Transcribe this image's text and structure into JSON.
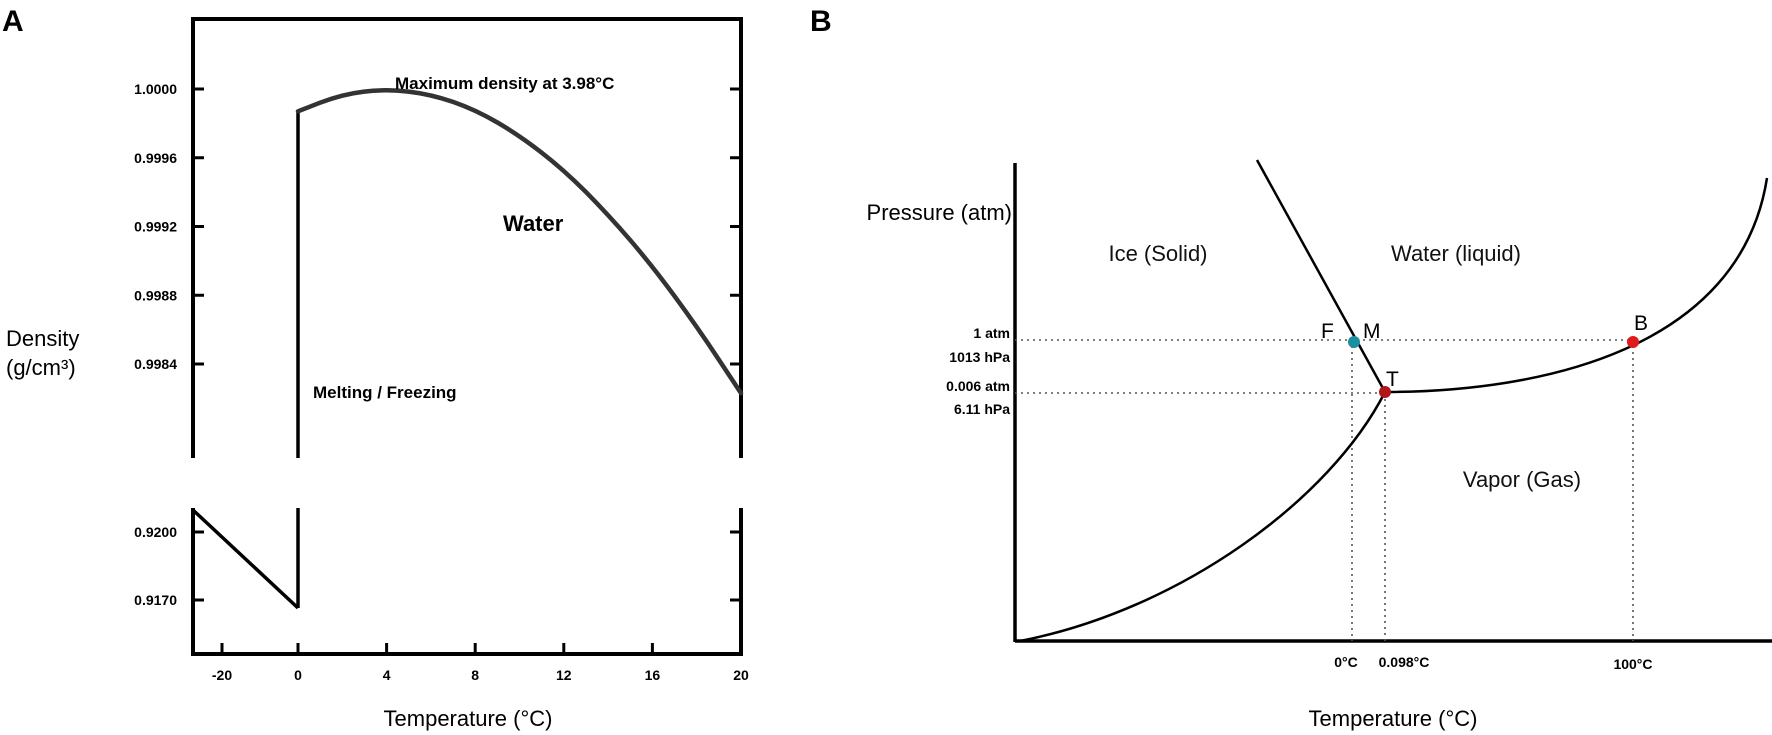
{
  "chart_data": [
    {
      "panel": "A",
      "type": "line",
      "xlabel": "Temperature (°C)",
      "ylabel_line1": "Density",
      "ylabel_line2": "(g/cm³)",
      "x_ticks": [
        -20,
        0,
        4,
        8,
        12,
        16,
        20
      ],
      "upper_y_ticks": [
        "1.0000",
        "0.9996",
        "0.9992",
        "0.9988",
        "0.9984"
      ],
      "lower_y_ticks": [
        "0.9200",
        "0.9170"
      ],
      "annotations": {
        "max_density": "Maximum density at 3.98°C",
        "water": "Water",
        "melting": "Melting / Freezing"
      },
      "series": [
        {
          "segment": "water",
          "x": [
            0,
            2,
            3.98,
            6,
            8,
            10,
            12,
            14,
            16,
            18,
            20
          ],
          "y": [
            0.99987,
            0.99997,
            1.0,
            0.99997,
            0.99988,
            0.99973,
            0.99953,
            0.99927,
            0.99897,
            0.99862,
            0.99823
          ]
        },
        {
          "segment": "ice",
          "x": [
            -30,
            0
          ],
          "y": [
            0.9216,
            0.917
          ]
        }
      ]
    },
    {
      "panel": "B",
      "type": "line",
      "xlabel": "Temperature (°C)",
      "ylabel": "Pressure (atm)",
      "x_ticks": [
        "0°C",
        "0.098°C",
        "100°C"
      ],
      "y_ticks": [
        {
          "line1": "1 atm",
          "line2": "1013 hPa"
        },
        {
          "line1": "0.006 atm",
          "line2": "6.11 hPa"
        }
      ],
      "regions": [
        "Ice (Solid)",
        "Water (liquid)",
        "Vapor (Gas)"
      ],
      "points": [
        {
          "label": "F",
          "color": "#1a8fa0"
        },
        {
          "label": "M",
          "color": "#1a8fa0"
        },
        {
          "label": "T",
          "color": "#b01818"
        },
        {
          "label": "B",
          "color": "#e01a1a"
        }
      ]
    }
  ]
}
